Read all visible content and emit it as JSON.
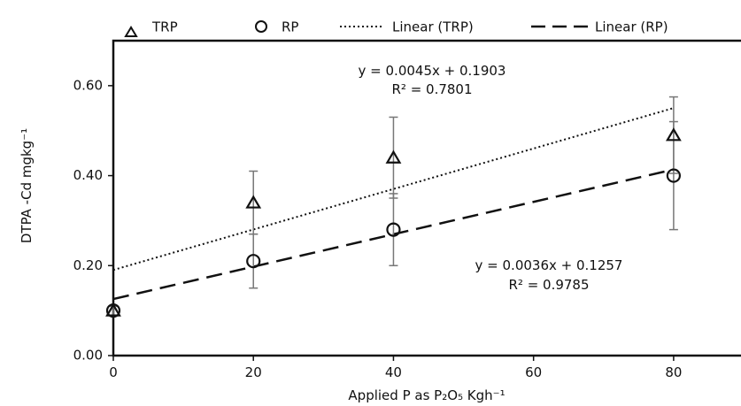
{
  "chart_data": {
    "type": "scatter",
    "xlabel": "Applied P as P₂O₅ Kgh⁻¹",
    "ylabel": "DTPA -Cd mgkg⁻¹",
    "xlim": [
      0,
      90
    ],
    "ylim": [
      0,
      0.7
    ],
    "x_ticks": [
      0,
      20,
      40,
      60,
      80
    ],
    "x_tick_labels": [
      "0",
      "20",
      "40",
      "60",
      "80"
    ],
    "y_ticks": [
      0,
      0.2,
      0.4,
      0.6
    ],
    "y_tick_labels": [
      "0.00",
      "0.20",
      "0.40",
      "0.60"
    ],
    "grid": false,
    "legend_position": "top",
    "series": [
      {
        "name": "TRP",
        "marker": "triangle",
        "x": [
          0,
          20,
          40,
          80
        ],
        "y": [
          0.1,
          0.34,
          0.44,
          0.49
        ],
        "error": [
          0.01,
          0.07,
          0.09,
          0.085
        ],
        "trendline": {
          "name": "Linear (TRP)",
          "style": "dotted",
          "slope": 0.0045,
          "intercept": 0.1903,
          "equation": "y = 0.0045x + 0.1903",
          "r2": "R² = 0.7801"
        }
      },
      {
        "name": "RP",
        "marker": "circle",
        "x": [
          0,
          20,
          40,
          80
        ],
        "y": [
          0.1,
          0.21,
          0.28,
          0.4
        ],
        "error": [
          0.01,
          0.06,
          0.08,
          0.12
        ],
        "trendline": {
          "name": "Linear (RP)",
          "style": "dashed",
          "slope": 0.0036,
          "intercept": 0.1257,
          "equation": "y = 0.0036x + 0.1257",
          "r2": "R² = 0.9785"
        }
      }
    ]
  },
  "legend": {
    "trp": "TRP",
    "rp": "RP",
    "linear_trp": "Linear (TRP)",
    "linear_rp": "Linear (RP)"
  }
}
